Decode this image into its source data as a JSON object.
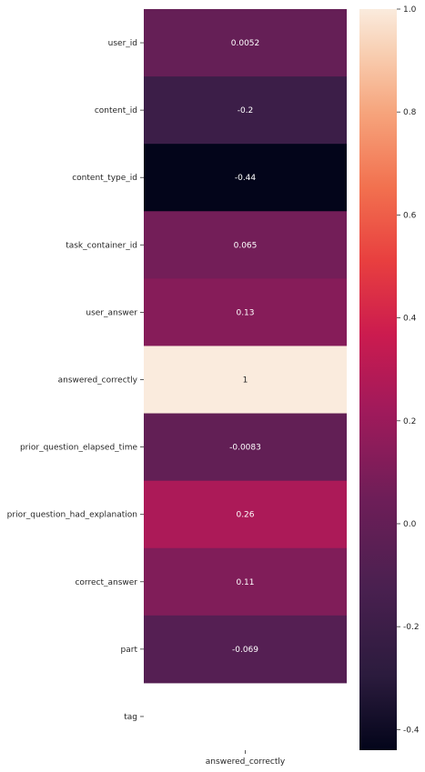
{
  "chart_data": {
    "type": "heatmap",
    "title": "",
    "xlabel": "",
    "ylabel": "",
    "columns": [
      "answered_correctly"
    ],
    "rows": [
      {
        "label": "user_id",
        "value": 0.0052,
        "text": "0.0052"
      },
      {
        "label": "content_id",
        "value": -0.2,
        "text": "-0.2"
      },
      {
        "label": "content_type_id",
        "value": -0.44,
        "text": "-0.44"
      },
      {
        "label": "task_container_id",
        "value": 0.065,
        "text": "0.065"
      },
      {
        "label": "user_answer",
        "value": 0.13,
        "text": "0.13"
      },
      {
        "label": "answered_correctly",
        "value": 1,
        "text": "1"
      },
      {
        "label": "prior_question_elapsed_time",
        "value": -0.0083,
        "text": "-0.0083"
      },
      {
        "label": "prior_question_had_explanation",
        "value": 0.26,
        "text": "0.26"
      },
      {
        "label": "correct_answer",
        "value": 0.11,
        "text": "0.11"
      },
      {
        "label": "part",
        "value": -0.069,
        "text": "-0.069"
      },
      {
        "label": "tag",
        "value": null,
        "text": ""
      }
    ],
    "colorbar": {
      "min": -0.44,
      "max": 1.0,
      "ticks": [
        {
          "value": 1.0,
          "label": "1.0"
        },
        {
          "value": 0.8,
          "label": "0.8"
        },
        {
          "value": 0.6,
          "label": "0.6"
        },
        {
          "value": 0.4,
          "label": "0.4"
        },
        {
          "value": 0.2,
          "label": "0.2"
        },
        {
          "value": 0.0,
          "label": "0.0"
        },
        {
          "value": -0.2,
          "label": "-0.2"
        },
        {
          "value": -0.4,
          "label": "-0.4"
        }
      ],
      "colormap": "rocket"
    },
    "grid": false,
    "legend": "colorbar-right"
  }
}
